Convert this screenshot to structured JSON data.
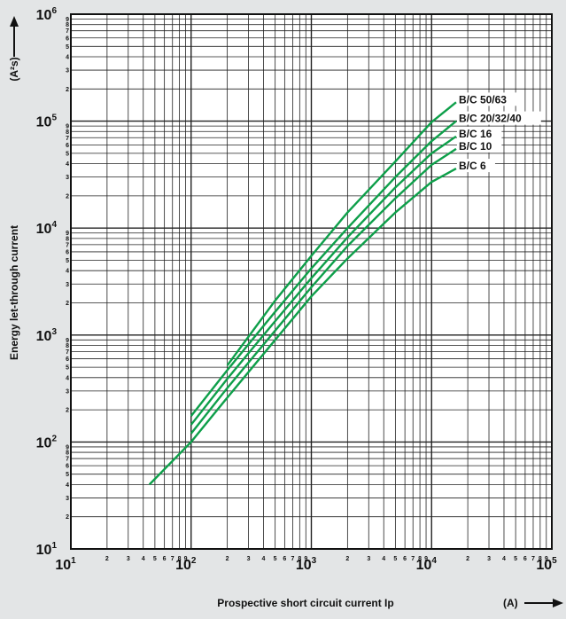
{
  "chart_data": {
    "type": "line",
    "xlabel": "Prospective short circuit current Ip",
    "xunit": "(A)",
    "ylabel": "Energy let-through current",
    "yunit": "(A²s)",
    "xscale": "log",
    "yscale": "log",
    "xlim": [
      10,
      100000
    ],
    "ylim": [
      10,
      1000000
    ],
    "grid": true,
    "legend_placement": "labels at line ends, top-right",
    "line_color": "#0e9f4a",
    "x_major_ticks": [
      {
        "base": "10",
        "exp": "1"
      },
      {
        "base": "10",
        "exp": "2"
      },
      {
        "base": "10",
        "exp": "3"
      },
      {
        "base": "10",
        "exp": "4"
      },
      {
        "base": "10",
        "exp": "5"
      }
    ],
    "y_major_ticks": [
      {
        "base": "10",
        "exp": "1"
      },
      {
        "base": "10",
        "exp": "2"
      },
      {
        "base": "10",
        "exp": "3"
      },
      {
        "base": "10",
        "exp": "4"
      },
      {
        "base": "10",
        "exp": "5"
      },
      {
        "base": "10",
        "exp": "6"
      }
    ],
    "minor_tick_labels": [
      "2",
      "3",
      "4",
      "5",
      "6",
      "7",
      "8",
      "9"
    ],
    "series": [
      {
        "name": "B/C 50/63",
        "x": [
          200,
          500,
          1000,
          2000,
          5000,
          10000,
          16000
        ],
        "y": [
          520,
          2100,
          5500,
          14000,
          42000,
          98000,
          150000
        ]
      },
      {
        "name": "B/C 20/32/40",
        "x": [
          100,
          200,
          500,
          1000,
          2000,
          5000,
          10000,
          16000
        ],
        "y": [
          175,
          470,
          1650,
          4200,
          10000,
          30000,
          65000,
          100000
        ]
      },
      {
        "name": "B/C 16",
        "x": [
          100,
          200,
          500,
          1000,
          2000,
          5000,
          10000,
          16000
        ],
        "y": [
          145,
          390,
          1350,
          3400,
          8200,
          24000,
          50000,
          72000
        ]
      },
      {
        "name": "B/C 10",
        "x": [
          100,
          200,
          500,
          1000,
          2000,
          5000,
          10000,
          16000
        ],
        "y": [
          120,
          320,
          1100,
          2800,
          6800,
          19000,
          39000,
          55000
        ]
      },
      {
        "name": "B/C 6",
        "x": [
          45,
          100,
          200,
          500,
          1000,
          2000,
          5000,
          10000,
          16000
        ],
        "y": [
          40,
          100,
          260,
          900,
          2300,
          5200,
          14000,
          27000,
          36000
        ]
      }
    ]
  }
}
